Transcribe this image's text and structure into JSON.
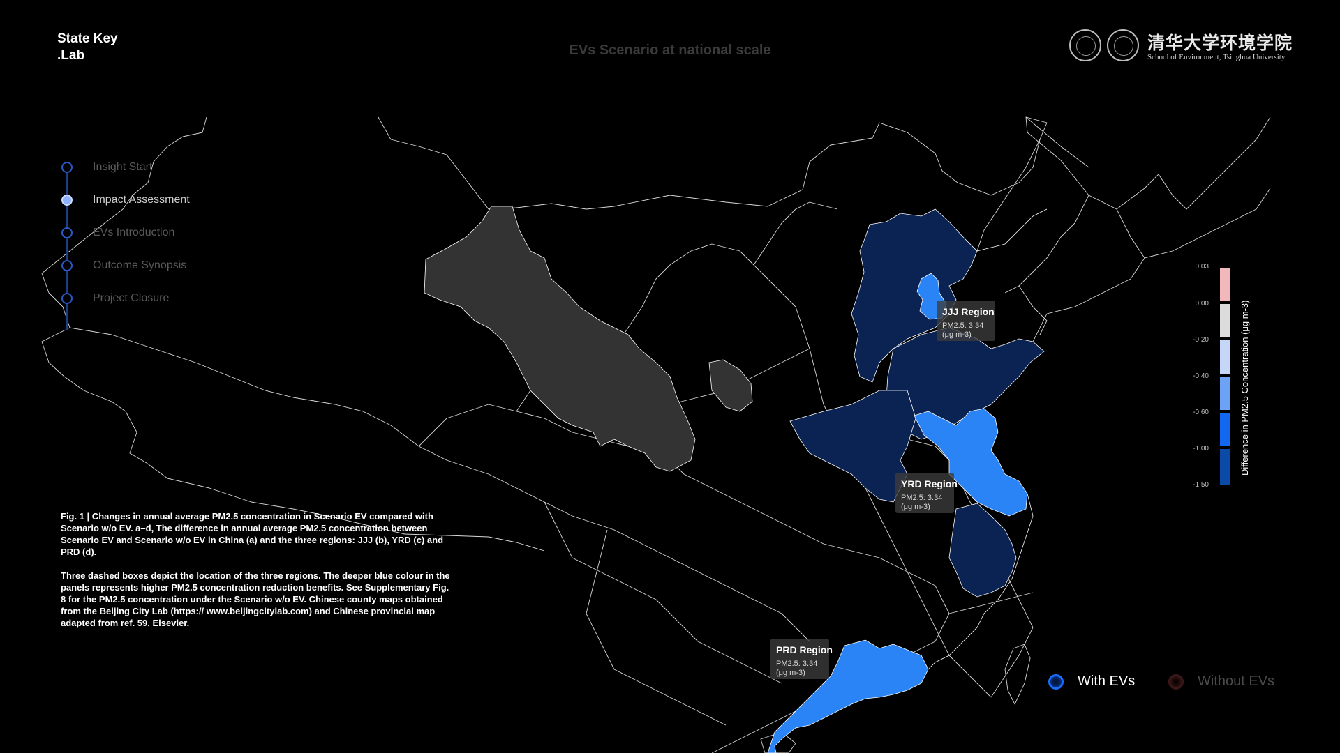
{
  "brand": {
    "line1": "State Key",
    "line2": ".Lab"
  },
  "header": {
    "title": "EVs Scenario at national scale"
  },
  "university": {
    "name_cn": "清华大学环境学院",
    "name_en": "School of Environment, Tsinghua University"
  },
  "nav": {
    "items": [
      {
        "label": "Insight Start",
        "active": false
      },
      {
        "label": "Impact Assessment",
        "active": true
      },
      {
        "label": "EVs Introduction",
        "active": false
      },
      {
        "label": "Outcome Synopsis",
        "active": false
      },
      {
        "label": "Project Closure",
        "active": false
      }
    ]
  },
  "caption": {
    "para1": "Fig. 1 | Changes in annual average PM2.5 concentration in Scenario EV compared with Scenario w/o EV. a–d, The difference in annual average PM2.5 concentration between Scenario EV and Scenario w/o EV in China (a) and the three regions: JJJ (b), YRD (c) and PRD (d).",
    "para2": "Three dashed boxes depict the location of the three regions. The deeper blue colour in the panels represents higher PM2.5 concentration reduction benefits. See Supplementary Fig. 8 for the PM2.5 concentration under the Scenario w/o EV. Chinese county maps obtained from the Beijing City Lab (https:// www.beijingcitylab.com) and Chinese provincial map adapted from ref. 59, Elsevier."
  },
  "regions": {
    "jjj": {
      "title": "JJJ Region",
      "value": "PM2.5: 3.34",
      "unit": "(μg m-3)"
    },
    "yrd": {
      "title": "YRD Region",
      "value": "PM2.5: 3.34",
      "unit": "(μg m-3)"
    },
    "prd": {
      "title": "PRD Region",
      "value": "PM2.5: 3.34",
      "unit": "(μg m-3)"
    }
  },
  "colorbar": {
    "title": "Difference in PM2.5 Concentration (μg m-3)",
    "ticks": [
      "0.03",
      "0.00",
      "-0.20",
      "-0.40",
      "-0.60",
      "-1.00",
      "-1.50"
    ],
    "colors": [
      "#f2b8bb",
      "#dcdcdc",
      "#c5d6f7",
      "#6ea2f5",
      "#1368f0",
      "#0c4aa8"
    ]
  },
  "map_colors": {
    "background": "#000000",
    "outline": "#ffffff",
    "deep_blue": "#0b2352",
    "bright_blue": "#2a84f5",
    "gray": "#333333"
  },
  "legend": {
    "with_label": "With EVs",
    "without_label": "Without EVs"
  }
}
